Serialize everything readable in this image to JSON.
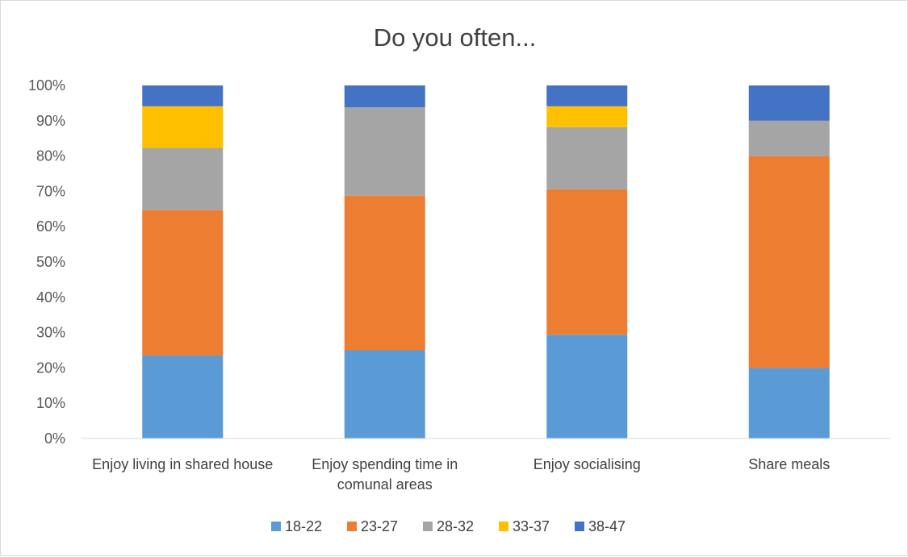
{
  "chart_data": {
    "type": "bar",
    "stacked": true,
    "title": "Do you often...",
    "xlabel": "",
    "ylabel": "",
    "ylim": [
      0,
      100
    ],
    "y_ticks": [
      "0%",
      "10%",
      "20%",
      "30%",
      "40%",
      "50%",
      "60%",
      "70%",
      "80%",
      "90%",
      "100%"
    ],
    "categories": [
      "Enjoy living in shared house",
      "Enjoy spending time in comunal areas",
      "Enjoy socialising",
      "Share meals"
    ],
    "series": [
      {
        "name": "18-22",
        "color": "#5B9BD5",
        "values": [
          23.5,
          25.0,
          29.4,
          20.0
        ]
      },
      {
        "name": "23-27",
        "color": "#ED7D31",
        "values": [
          41.2,
          43.8,
          41.2,
          60.0
        ]
      },
      {
        "name": "28-32",
        "color": "#A5A5A5",
        "values": [
          17.6,
          25.0,
          17.6,
          10.0
        ]
      },
      {
        "name": "33-37",
        "color": "#FFC000",
        "values": [
          11.8,
          0.0,
          5.9,
          0.0
        ]
      },
      {
        "name": "38-47",
        "color": "#4472C4",
        "values": [
          5.9,
          6.2,
          5.9,
          10.0
        ]
      }
    ],
    "grid": false,
    "legend_position": "bottom"
  }
}
